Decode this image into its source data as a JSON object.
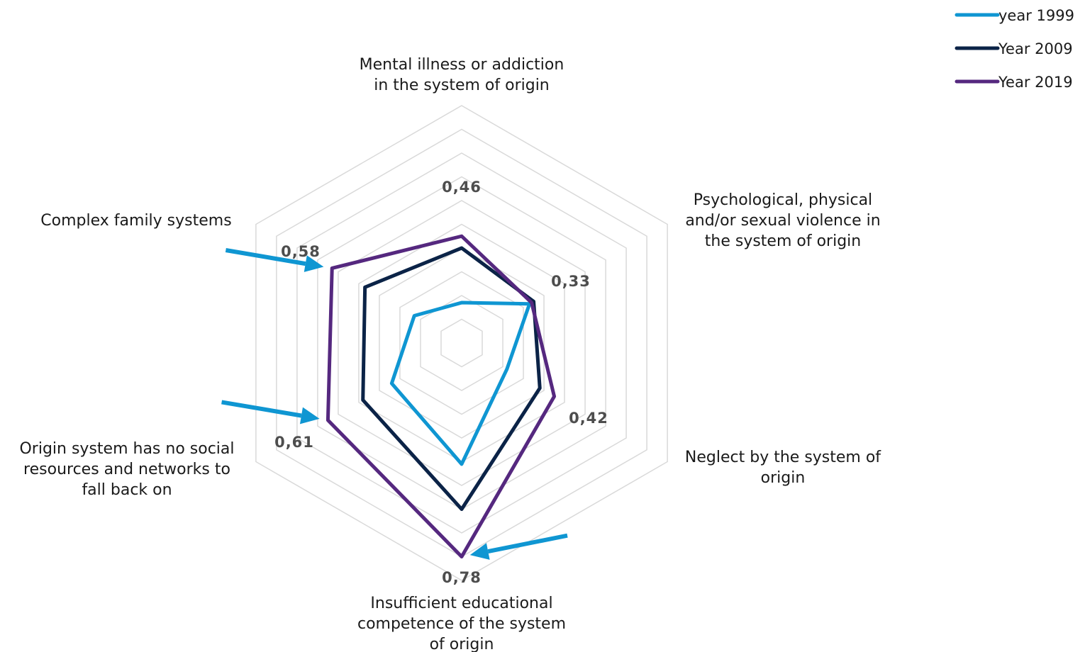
{
  "chart_data": {
    "type": "radar",
    "title": "",
    "axes": [
      {
        "label": [
          "Mental illness or addiction",
          "in the system of origin"
        ]
      },
      {
        "label": [
          "Psychological, physical",
          "and/or sexual violence in",
          "the system of origin"
        ]
      },
      {
        "label": [
          "Neglect by the system of",
          "origin"
        ]
      },
      {
        "label": [
          "Insufficient educational",
          "competence of the system",
          "of origin"
        ]
      },
      {
        "label": [
          "Origin system has no social",
          "resources and networks to",
          "fall back on"
        ]
      },
      {
        "label": [
          "Complex family systems"
        ]
      }
    ],
    "value_labels": [
      "0,46",
      "0,33",
      "0,42",
      "0,78",
      "0,61",
      "0,58"
    ],
    "range": [
      0,
      1
    ],
    "grid_rings": 10,
    "series": [
      {
        "name": "year 1999",
        "color": "#0f96d2",
        "values": [
          0.17,
          0.33,
          0.22,
          0.51,
          0.34,
          0.23
        ]
      },
      {
        "name": "Year 2009",
        "color": "#0b2347",
        "values": [
          0.4,
          0.35,
          0.38,
          0.7,
          0.48,
          0.47
        ]
      },
      {
        "name": "Year 2019",
        "color": "#55287f",
        "values": [
          0.45,
          0.34,
          0.45,
          0.9,
          0.65,
          0.63
        ]
      }
    ],
    "arrows": {
      "color": "#0f96d2",
      "targets": [
        3,
        4,
        5
      ]
    },
    "legend_position": "top-right"
  }
}
